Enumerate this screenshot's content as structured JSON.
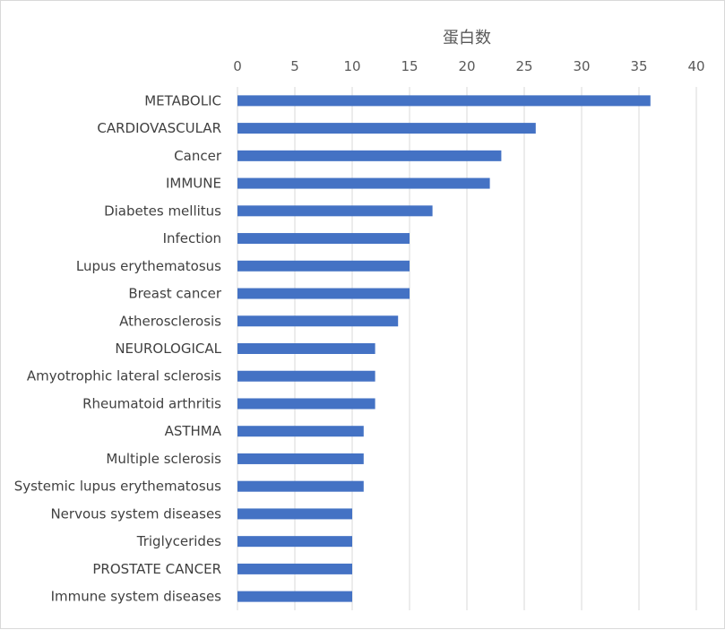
{
  "chart_data": {
    "type": "bar",
    "orientation": "horizontal",
    "xlabel": "蛋白数",
    "xlabel_position": "top",
    "xlim": [
      0,
      40
    ],
    "xticks": [
      0,
      5,
      10,
      15,
      20,
      25,
      30,
      35,
      40
    ],
    "grid": true,
    "legend": "none",
    "bar_color": "#4472c4",
    "categories": [
      "METABOLIC",
      "CARDIOVASCULAR",
      "Cancer",
      "IMMUNE",
      "Diabetes mellitus",
      "Infection",
      "Lupus erythematosus",
      "Breast cancer",
      "Atherosclerosis",
      "NEUROLOGICAL",
      "Amyotrophic lateral sclerosis",
      "Rheumatoid arthritis",
      "ASTHMA",
      "Multiple sclerosis",
      "Systemic lupus erythematosus",
      "Nervous system diseases",
      "Triglycerides",
      "PROSTATE CANCER",
      "Immune system diseases"
    ],
    "values": [
      36,
      26,
      23,
      22,
      17,
      15,
      15,
      15,
      14,
      12,
      12,
      12,
      11,
      11,
      11,
      10,
      10,
      10,
      10
    ]
  }
}
